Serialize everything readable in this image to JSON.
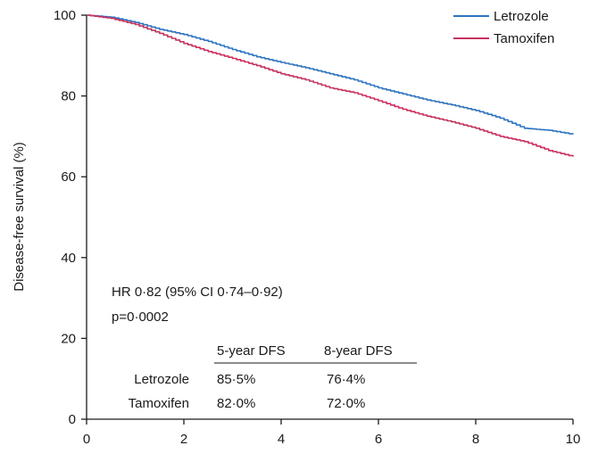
{
  "chart_data": {
    "type": "line",
    "title": "",
    "xlabel": "",
    "ylabel": "Disease-free survival (%)",
    "xlim": [
      0,
      10
    ],
    "ylim": [
      0,
      100
    ],
    "xticks": [
      0,
      2,
      4,
      6,
      8,
      10
    ],
    "yticks": [
      0,
      20,
      40,
      60,
      80,
      100
    ],
    "grid": false,
    "legend_position": "top-right",
    "series": [
      {
        "name": "Letrozole",
        "color": "#2f74c0",
        "x": [
          0,
          0.5,
          1.0,
          1.5,
          2.0,
          2.5,
          3.0,
          3.5,
          4.0,
          4.5,
          5.0,
          5.5,
          6.0,
          6.5,
          7.0,
          7.5,
          8.0,
          8.5,
          9.0,
          9.5,
          10.0
        ],
        "y": [
          100,
          99.5,
          98.2,
          96.5,
          95.2,
          93.5,
          91.5,
          89.7,
          88.3,
          87.0,
          85.5,
          84.0,
          82.0,
          80.5,
          79.0,
          77.8,
          76.4,
          74.5,
          72.0,
          71.5,
          70.5
        ]
      },
      {
        "name": "Tamoxifen",
        "color": "#c8325e",
        "x": [
          0,
          0.5,
          1.0,
          1.5,
          2.0,
          2.5,
          3.0,
          3.5,
          4.0,
          4.5,
          5.0,
          5.5,
          6.0,
          6.5,
          7.0,
          7.5,
          8.0,
          8.5,
          9.0,
          9.5,
          10.0
        ],
        "y": [
          100,
          99.2,
          97.7,
          95.5,
          93.0,
          91.0,
          89.3,
          87.5,
          85.5,
          84.0,
          82.0,
          80.8,
          78.8,
          76.7,
          75.0,
          73.6,
          72.0,
          70.0,
          68.7,
          66.5,
          65.0
        ]
      }
    ],
    "annotations": {
      "hr": "HR 0·82 (95% CI 0·74–0·92)",
      "p": "p=0·0002"
    },
    "table": {
      "headers": [
        "5-year DFS",
        "8-year DFS"
      ],
      "rows": [
        {
          "label": "Letrozole",
          "values": [
            "85·5%",
            "76·4%"
          ]
        },
        {
          "label": "Tamoxifen",
          "values": [
            "82·0%",
            "72·0%"
          ]
        }
      ]
    }
  }
}
